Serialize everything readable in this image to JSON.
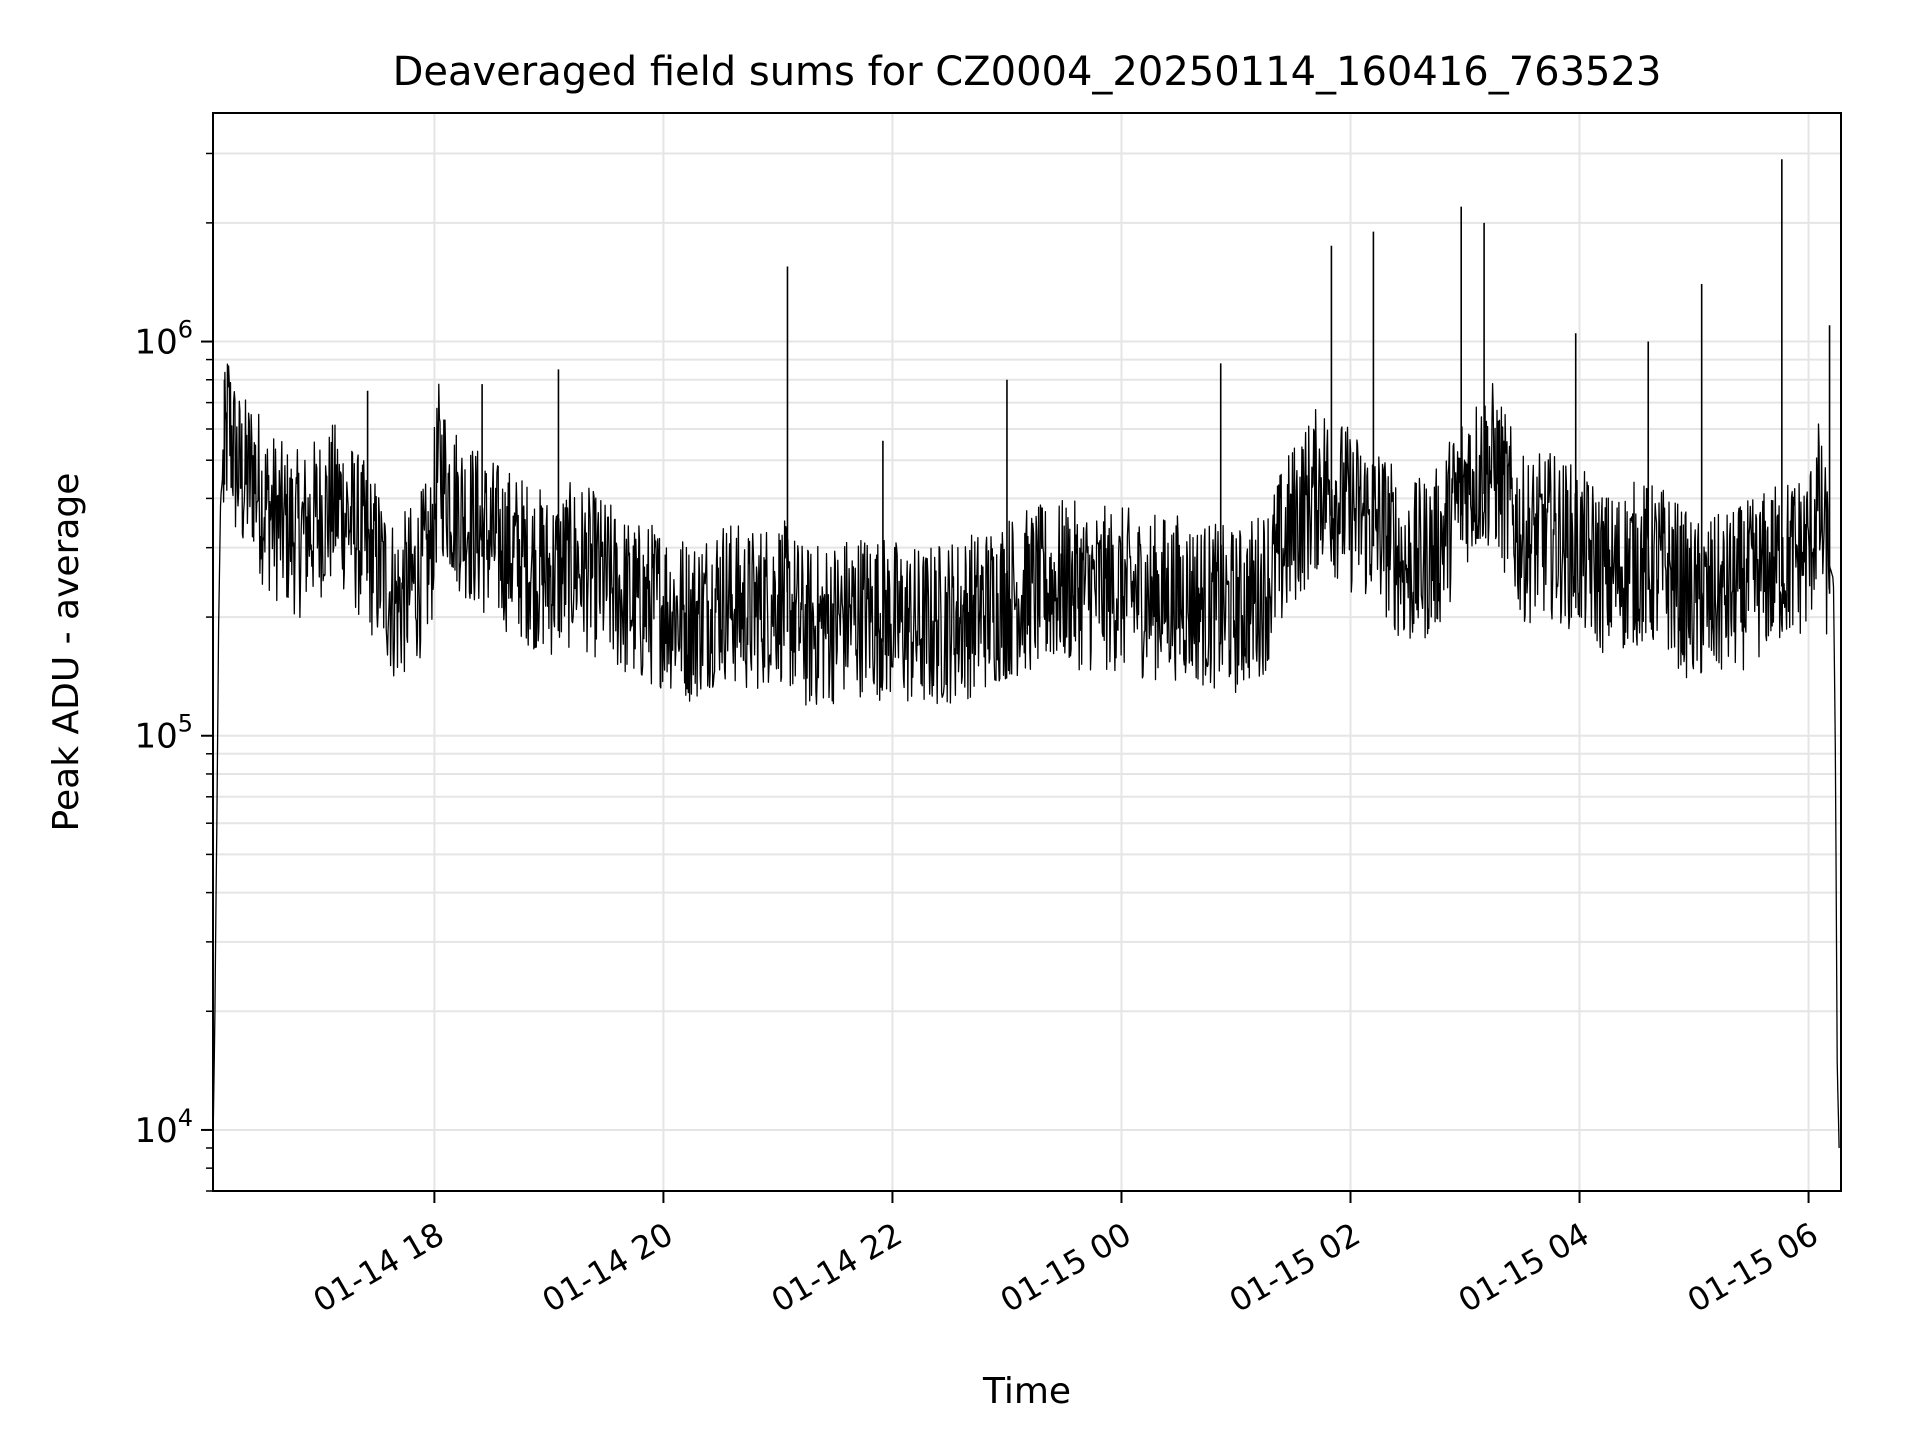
{
  "chart_data": {
    "type": "line",
    "title": "Deaveraged field sums for CZ0004_20250114_160416_763523",
    "xlabel": "Time",
    "ylabel": "Peak ADU - average",
    "y_scale": "log",
    "ylim": [
      7000,
      3800000
    ],
    "xlim": [
      "2025-01-14T16:04:00",
      "2025-01-15T06:17:00"
    ],
    "grid": true,
    "legend": "none",
    "line_color": "#000000",
    "grid_color": "#e5e5e5",
    "x_ticks": [
      {
        "label": "01-14 18",
        "value": "2025-01-14T18:00:00"
      },
      {
        "label": "01-14 20",
        "value": "2025-01-14T20:00:00"
      },
      {
        "label": "01-14 22",
        "value": "2025-01-14T22:00:00"
      },
      {
        "label": "01-15 00",
        "value": "2025-01-15T00:00:00"
      },
      {
        "label": "01-15 02",
        "value": "2025-01-15T02:00:00"
      },
      {
        "label": "01-15 04",
        "value": "2025-01-15T04:00:00"
      },
      {
        "label": "01-15 06",
        "value": "2025-01-15T06:00:00"
      }
    ],
    "y_ticks": [
      {
        "base": "10",
        "exp": "4",
        "value": 10000
      },
      {
        "base": "10",
        "exp": "5",
        "value": 100000
      },
      {
        "base": "10",
        "exp": "6",
        "value": 1000000
      }
    ],
    "series": [
      {
        "x": [
          "2025-01-14T16:04:00",
          "2025-01-14T16:05:00",
          "2025-01-14T16:06:00",
          "2025-01-14T16:07:00",
          "2025-01-14T16:08:00",
          "2025-01-14T16:12:00",
          "2025-01-14T16:16:00",
          "2025-01-14T16:20:00",
          "2025-01-14T16:25:00",
          "2025-01-14T16:30:00",
          "2025-01-14T16:40:00",
          "2025-01-14T16:50:00",
          "2025-01-14T17:00:00",
          "2025-01-14T17:10:00",
          "2025-01-14T17:20:00",
          "2025-01-14T17:30:00",
          "2025-01-14T17:40:00",
          "2025-01-14T17:50:00",
          "2025-01-14T17:58:00",
          "2025-01-14T18:02:00",
          "2025-01-14T18:10:00",
          "2025-01-14T18:20:00",
          "2025-01-14T18:30:00",
          "2025-01-14T18:45:00",
          "2025-01-14T19:00:00",
          "2025-01-14T19:15:00",
          "2025-01-14T19:30:00",
          "2025-01-14T19:45:00",
          "2025-01-14T20:00:00",
          "2025-01-14T20:15:00",
          "2025-01-14T20:30:00",
          "2025-01-14T20:45:00",
          "2025-01-14T21:00:00",
          "2025-01-14T21:15:00",
          "2025-01-14T21:30:00",
          "2025-01-14T21:45:00",
          "2025-01-14T22:00:00",
          "2025-01-14T22:15:00",
          "2025-01-14T22:30:00",
          "2025-01-14T22:45:00",
          "2025-01-14T23:00:00",
          "2025-01-14T23:15:00",
          "2025-01-14T23:30:00",
          "2025-01-14T23:45:00",
          "2025-01-15T00:00:00",
          "2025-01-15T00:15:00",
          "2025-01-15T00:30:00",
          "2025-01-15T00:45:00",
          "2025-01-15T01:00:00",
          "2025-01-15T01:15:00",
          "2025-01-15T01:30:00",
          "2025-01-15T01:45:00",
          "2025-01-15T02:00:00",
          "2025-01-15T02:15:00",
          "2025-01-15T02:30:00",
          "2025-01-15T02:45:00",
          "2025-01-15T03:00:00",
          "2025-01-15T03:15:00",
          "2025-01-15T03:30:00",
          "2025-01-15T03:45:00",
          "2025-01-15T04:00:00",
          "2025-01-15T04:15:00",
          "2025-01-15T04:30:00",
          "2025-01-15T04:45:00",
          "2025-01-15T05:00:00",
          "2025-01-15T05:15:00",
          "2025-01-15T05:30:00",
          "2025-01-15T05:45:00",
          "2025-01-15T06:00:00",
          "2025-01-15T06:05:00",
          "2025-01-15T06:10:00",
          "2025-01-15T06:13:00",
          "2025-01-15T06:14:00",
          "2025-01-15T06:15:00",
          "2025-01-15T06:16:00"
        ],
        "y": [
          9000,
          20000,
          60000,
          200000,
          400000,
          650000,
          500000,
          450000,
          480000,
          400000,
          350000,
          330000,
          370000,
          400000,
          330000,
          280000,
          220000,
          250000,
          290000,
          500000,
          400000,
          350000,
          320000,
          290000,
          260000,
          280000,
          250000,
          220000,
          220000,
          200000,
          230000,
          210000,
          230000,
          190000,
          200000,
          210000,
          200000,
          190000,
          200000,
          210000,
          230000,
          240000,
          250000,
          240000,
          240000,
          230000,
          230000,
          220000,
          210000,
          240000,
          350000,
          450000,
          380000,
          350000,
          270000,
          300000,
          450000,
          500000,
          320000,
          330000,
          300000,
          260000,
          280000,
          270000,
          220000,
          230000,
          250000,
          280000,
          300000,
          400000,
          280000,
          250000,
          100000,
          15000,
          9000
        ]
      }
    ],
    "spikes": [
      {
        "x": "2025-01-14T16:10:00",
        "y": 800000
      },
      {
        "x": "2025-01-14T17:25:00",
        "y": 750000
      },
      {
        "x": "2025-01-14T18:25:00",
        "y": 780000
      },
      {
        "x": "2025-01-14T19:05:00",
        "y": 850000
      },
      {
        "x": "2025-01-14T21:05:00",
        "y": 1550000
      },
      {
        "x": "2025-01-14T21:55:00",
        "y": 560000
      },
      {
        "x": "2025-01-14T23:00:00",
        "y": 800000
      },
      {
        "x": "2025-01-15T00:52:00",
        "y": 880000
      },
      {
        "x": "2025-01-15T01:50:00",
        "y": 1750000
      },
      {
        "x": "2025-01-15T02:12:00",
        "y": 1900000
      },
      {
        "x": "2025-01-15T02:58:00",
        "y": 2200000
      },
      {
        "x": "2025-01-15T03:10:00",
        "y": 2000000
      },
      {
        "x": "2025-01-15T03:58:00",
        "y": 1050000
      },
      {
        "x": "2025-01-15T04:36:00",
        "y": 1000000
      },
      {
        "x": "2025-01-15T05:04:00",
        "y": 1400000
      },
      {
        "x": "2025-01-15T05:46:00",
        "y": 2900000
      },
      {
        "x": "2025-01-15T06:11:00",
        "y": 1100000
      }
    ],
    "noise_band": {
      "upper_factor": 1.6,
      "lower_factor": 0.6
    }
  }
}
